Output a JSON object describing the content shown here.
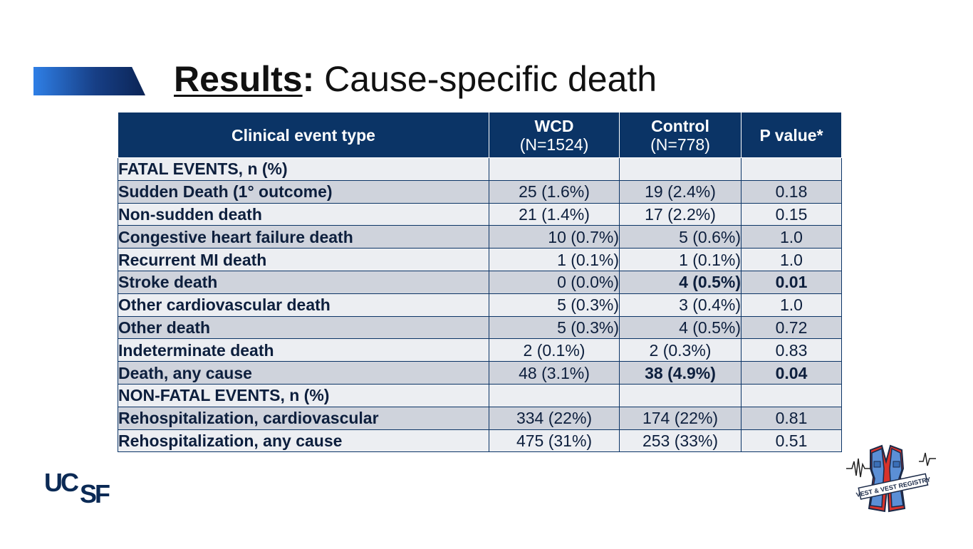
{
  "title": {
    "bold": "Results",
    "colon": ":",
    "rest": " Cause-specific death"
  },
  "table": {
    "headers": [
      {
        "main": "Clinical event type",
        "sub": ""
      },
      {
        "main": "WCD",
        "sub": "(N=1524)"
      },
      {
        "main": "Control",
        "sub": "(N=778)"
      },
      {
        "main": "P value*",
        "sub": ""
      }
    ],
    "rows": [
      {
        "label": "FATAL EVENTS, n (%)",
        "wcd": "",
        "control": "",
        "p": ""
      },
      {
        "label": "Sudden Death (1° outcome)",
        "wcd": "25 (1.6%)",
        "control": "19 (2.4%)",
        "p": "0.18"
      },
      {
        "label": "Non-sudden death",
        "wcd": "21 (1.4%)",
        "control": "17 (2.2%)",
        "p": "0.15"
      },
      {
        "label": "Congestive heart failure death",
        "wcd": "10 (0.7%)",
        "control": "5 (0.6%)",
        "p": "1.0"
      },
      {
        "label": "Recurrent MI death",
        "wcd": "1 (0.1%)",
        "control": "1 (0.1%)",
        "p": "1.0"
      },
      {
        "label": "Stroke death",
        "wcd": "0 (0.0%)",
        "control": "4 (0.5%)",
        "p": "0.01"
      },
      {
        "label": "Other cardiovascular death",
        "wcd": "5 (0.3%)",
        "control": "3 (0.4%)",
        "p": "1.0"
      },
      {
        "label": "Other death",
        "wcd": "5 (0.3%)",
        "control": "4 (0.5%)",
        "p": "0.72"
      },
      {
        "label": "Indeterminate death",
        "wcd": "2 (0.1%)",
        "control": "2 (0.3%)",
        "p": "0.83"
      },
      {
        "label": "Death, any cause",
        "wcd": "48 (3.1%)",
        "control": "38 (4.9%)",
        "p": "0.04"
      },
      {
        "label": "NON-FATAL EVENTS, n (%)",
        "wcd": "",
        "control": "",
        "p": ""
      },
      {
        "label": "Rehospitalization, cardiovascular",
        "wcd": "334 (22%)",
        "control": "174 (22%)",
        "p": "0.81"
      },
      {
        "label": "Rehospitalization, any cause",
        "wcd": "475 (31%)",
        "control": "253 (33%)",
        "p": "0.51"
      }
    ]
  },
  "logos": {
    "ucsf": "UCSF",
    "vest": "VEST & VEST REGISTRY"
  },
  "colors": {
    "header_bg": "#0b3466",
    "row_shade": "#cfd3dc",
    "row_light": "#eceef2"
  }
}
